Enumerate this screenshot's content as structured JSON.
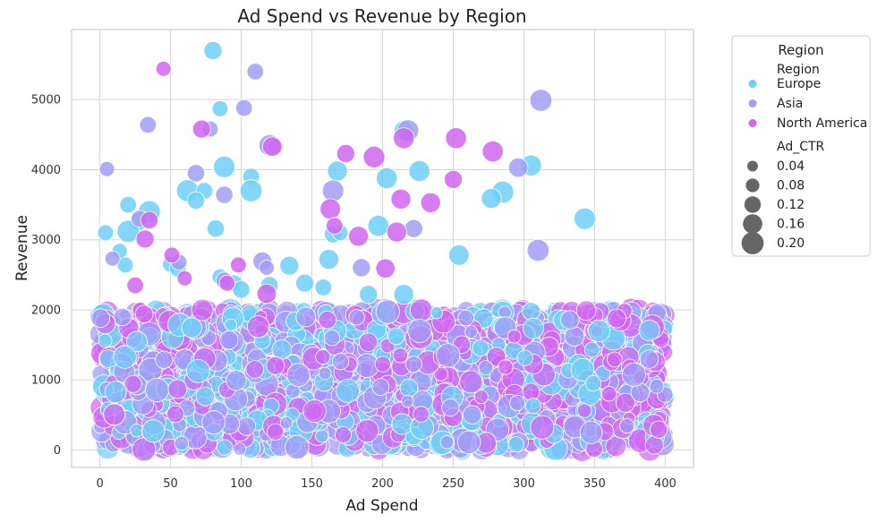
{
  "chart_data": {
    "type": "scatter",
    "title": "Ad Spend vs Revenue by Region",
    "xlabel": "Ad Spend",
    "ylabel": "Revenue",
    "xlim": [
      -20,
      420
    ],
    "ylim": [
      -250,
      6000
    ],
    "xticks": [
      0,
      50,
      100,
      150,
      200,
      250,
      300,
      350,
      400
    ],
    "yticks": [
      0,
      1000,
      2000,
      3000,
      4000,
      5000
    ],
    "grid": true,
    "legend": {
      "placement": "outside-top-right",
      "title": "Region",
      "hue_title": "Region",
      "size_title": "Ad_CTR",
      "hue_entries": [
        {
          "name": "Europe",
          "color": "#6fd0f7"
        },
        {
          "name": "Asia",
          "color": "#a29df5"
        },
        {
          "name": "North America",
          "color": "#d066f0"
        }
      ],
      "size_entries": [
        "0.04",
        "0.08",
        "0.12",
        "0.16",
        "0.20"
      ],
      "size_values": [
        0.04,
        0.08,
        0.12,
        0.16,
        0.2
      ]
    },
    "dense_band": {
      "description": "thousands of overlapping points, all three regions",
      "x_range": [
        0,
        400
      ],
      "y_range": [
        0,
        2000
      ],
      "ctr_range": [
        0.02,
        0.2
      ]
    },
    "series": [
      {
        "name": "Europe",
        "color": "#6fd0f7",
        "points": [
          [
            80,
            5700,
            0.09
          ],
          [
            85,
            4870,
            0.06
          ],
          [
            88,
            4040,
            0.15
          ],
          [
            62,
            3700,
            0.16
          ],
          [
            74,
            3700,
            0.07
          ],
          [
            107,
            3900,
            0.07
          ],
          [
            107,
            3700,
            0.16
          ],
          [
            68,
            3560,
            0.08
          ],
          [
            20,
            3500,
            0.07
          ],
          [
            28,
            3260,
            0.08
          ],
          [
            20,
            3120,
            0.16
          ],
          [
            35,
            3400,
            0.16
          ],
          [
            82,
            3160,
            0.08
          ],
          [
            4,
            3100,
            0.06
          ],
          [
            165,
            3080,
            0.08
          ],
          [
            170,
            3100,
            0.06
          ],
          [
            168,
            3980,
            0.12
          ],
          [
            203,
            3880,
            0.14
          ],
          [
            226,
            3980,
            0.14
          ],
          [
            215,
            4560,
            0.11
          ],
          [
            305,
            4060,
            0.14
          ],
          [
            285,
            3680,
            0.16
          ],
          [
            277,
            3590,
            0.12
          ],
          [
            197,
            3200,
            0.14
          ],
          [
            254,
            2780,
            0.13
          ],
          [
            343,
            3300,
            0.15
          ],
          [
            162,
            2720,
            0.12
          ],
          [
            134,
            2630,
            0.1
          ],
          [
            120,
            2350,
            0.08
          ],
          [
            145,
            2380,
            0.09
          ],
          [
            158,
            2320,
            0.07
          ],
          [
            190,
            2220,
            0.09
          ],
          [
            215,
            2220,
            0.12
          ],
          [
            18,
            2640,
            0.06
          ],
          [
            50,
            2650,
            0.06
          ],
          [
            55,
            2590,
            0.07
          ],
          [
            95,
            2380,
            0.07
          ],
          [
            100,
            2290,
            0.08
          ],
          [
            85,
            2470,
            0.06
          ],
          [
            14,
            2840,
            0.05
          ]
        ]
      },
      {
        "name": "Asia",
        "color": "#a29df5",
        "points": [
          [
            110,
            5400,
            0.07
          ],
          [
            102,
            4880,
            0.07
          ],
          [
            312,
            4990,
            0.16
          ],
          [
            34,
            4640,
            0.07
          ],
          [
            218,
            4560,
            0.15
          ],
          [
            120,
            4350,
            0.14
          ],
          [
            124,
            4330,
            0.06
          ],
          [
            78,
            4580,
            0.06
          ],
          [
            5,
            4010,
            0.05
          ],
          [
            68,
            3950,
            0.08
          ],
          [
            88,
            3640,
            0.08
          ],
          [
            165,
            3700,
            0.15
          ],
          [
            296,
            4030,
            0.11
          ],
          [
            310,
            2850,
            0.16
          ],
          [
            222,
            3160,
            0.09
          ],
          [
            115,
            2690,
            0.1
          ],
          [
            185,
            2600,
            0.09
          ],
          [
            28,
            3300,
            0.07
          ],
          [
            9,
            2730,
            0.05
          ],
          [
            118,
            2600,
            0.05
          ],
          [
            56,
            2680,
            0.06
          ],
          [
            88,
            2420,
            0.07
          ]
        ]
      },
      {
        "name": "North America",
        "color": "#d066f0",
        "points": [
          [
            45,
            5440,
            0.05
          ],
          [
            72,
            4580,
            0.09
          ],
          [
            122,
            4330,
            0.11
          ],
          [
            194,
            4180,
            0.15
          ],
          [
            215,
            4450,
            0.14
          ],
          [
            252,
            4450,
            0.14
          ],
          [
            278,
            4260,
            0.14
          ],
          [
            174,
            4230,
            0.09
          ],
          [
            250,
            3860,
            0.09
          ],
          [
            213,
            3580,
            0.12
          ],
          [
            234,
            3530,
            0.12
          ],
          [
            163,
            3440,
            0.13
          ],
          [
            166,
            3200,
            0.07
          ],
          [
            183,
            3050,
            0.12
          ],
          [
            210,
            3110,
            0.12
          ],
          [
            32,
            3010,
            0.09
          ],
          [
            35,
            3280,
            0.08
          ],
          [
            202,
            2590,
            0.11
          ],
          [
            118,
            2230,
            0.11
          ],
          [
            25,
            2350,
            0.07
          ],
          [
            51,
            2780,
            0.06
          ],
          [
            98,
            2640,
            0.06
          ],
          [
            60,
            2450,
            0.05
          ],
          [
            90,
            2380,
            0.06
          ]
        ]
      }
    ]
  }
}
